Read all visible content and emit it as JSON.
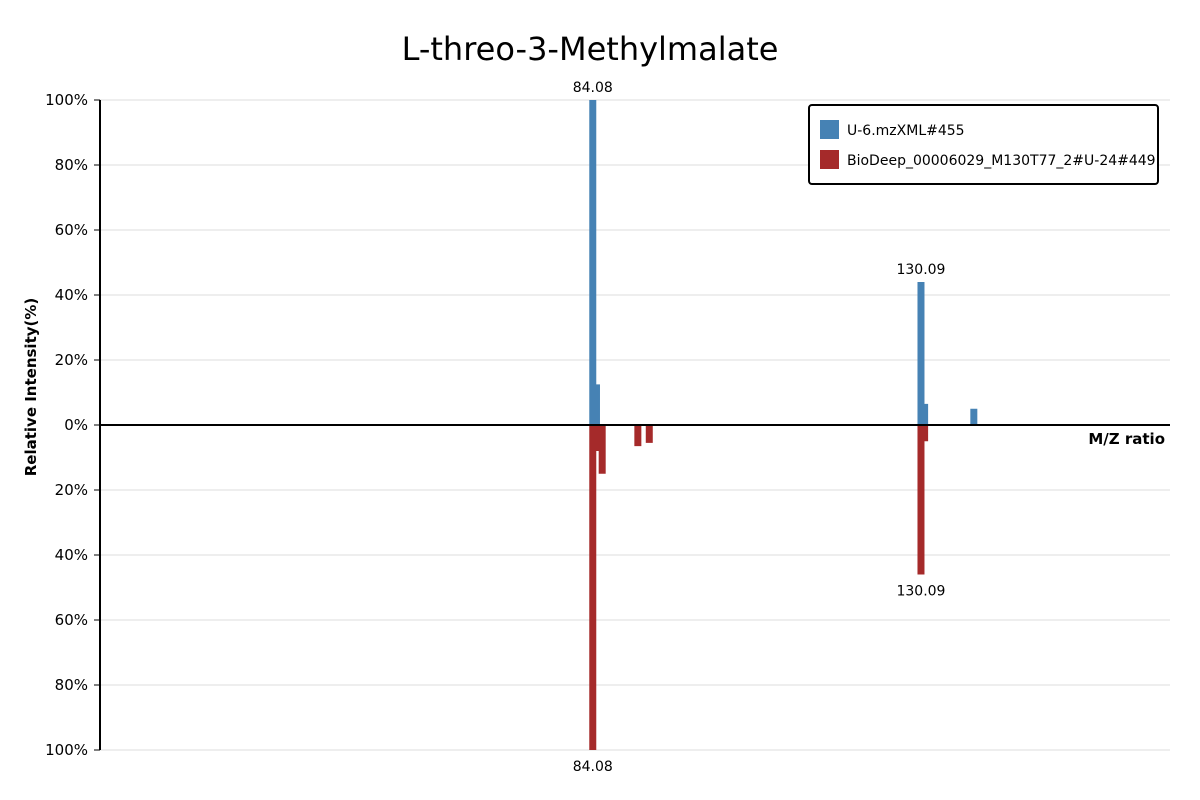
{
  "chart_data": {
    "type": "bar",
    "title": "L-threo-3-Methylmalate",
    "xlabel": "M/Z ratio",
    "ylabel": "Relative Intensity(%)",
    "yticks": [
      "100%",
      "80%",
      "60%",
      "40%",
      "20%",
      "0%",
      "20%",
      "40%",
      "60%",
      "80%",
      "100%"
    ],
    "ylim": [
      -100,
      100
    ],
    "xlim": [
      15,
      165
    ],
    "grid": true,
    "legend_position": "top-right",
    "series": [
      {
        "name": "U-6.mzXML#455",
        "color": "#4682b4",
        "direction": "up",
        "peaks": [
          {
            "mz": 84.08,
            "intensity": 100,
            "label": "84.08"
          },
          {
            "mz": 84.6,
            "intensity": 12.5,
            "label": ""
          },
          {
            "mz": 130.09,
            "intensity": 44,
            "label": "130.09"
          },
          {
            "mz": 130.6,
            "intensity": 6.5,
            "label": ""
          },
          {
            "mz": 137.5,
            "intensity": 5,
            "label": ""
          }
        ]
      },
      {
        "name": "BioDeep_00006029_M130T77_2#U-24#449",
        "color": "#a52a2a",
        "direction": "down",
        "peaks": [
          {
            "mz": 84.08,
            "intensity": 100,
            "label": "84.08"
          },
          {
            "mz": 84.6,
            "intensity": 8,
            "label": ""
          },
          {
            "mz": 85.4,
            "intensity": 15,
            "label": ""
          },
          {
            "mz": 90.4,
            "intensity": 6.5,
            "label": ""
          },
          {
            "mz": 92.0,
            "intensity": 5.5,
            "label": ""
          },
          {
            "mz": 130.09,
            "intensity": 46,
            "label": "130.09"
          },
          {
            "mz": 130.6,
            "intensity": 5,
            "label": ""
          }
        ]
      }
    ]
  }
}
